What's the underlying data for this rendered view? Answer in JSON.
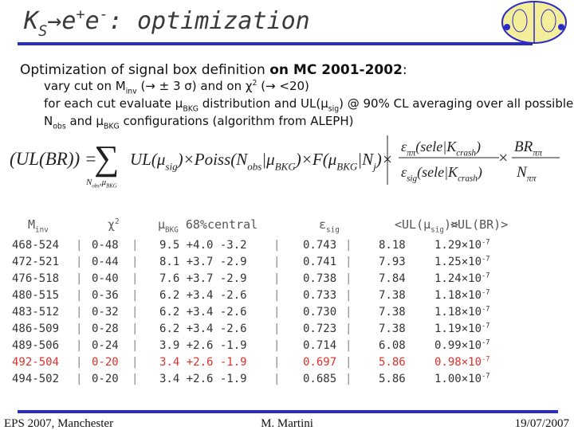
{
  "title": [
    {
      "t": "K"
    },
    {
      "sub": "S"
    },
    {
      "t": "→e"
    },
    {
      "sup": "+"
    },
    {
      "t": "e"
    },
    {
      "sup": "-"
    },
    {
      "t": ": optimization"
    }
  ],
  "heading": [
    {
      "t": "Optimization of signal box definition "
    },
    {
      "b": "on MC 2001-2002"
    },
    {
      "t": ":"
    }
  ],
  "bullets": [
    [
      {
        "t": "vary cut on M"
      },
      {
        "sub": "inv"
      },
      {
        "t": " (→ ± 3 σ) and on χ"
      },
      {
        "sup": "2"
      },
      {
        "t": " (→ <20)"
      }
    ],
    [
      {
        "t": "for each cut evaluate μ"
      },
      {
        "sub": "BKG"
      },
      {
        "t": " distribution and UL(μ"
      },
      {
        "sub": "sig"
      },
      {
        "t": ") @ 90% CL averaging over all possible"
      }
    ],
    [
      {
        "t": "N"
      },
      {
        "sub": "obs"
      },
      {
        "t": " and μ"
      },
      {
        "sub": "BKG"
      },
      {
        "t": " configurations (algorithm from ALEPH)"
      }
    ]
  ],
  "formula": {
    "lhs": [
      {
        "t": "(UL(BR))"
      }
    ],
    "eq": [
      {
        "t": "="
      }
    ],
    "sum": [
      {
        "t": "∑"
      }
    ],
    "sum_under": [
      {
        "t": "N"
      },
      {
        "sub": "obs"
      },
      {
        "t": ",μ"
      },
      {
        "sub": "BKG"
      }
    ],
    "body": [
      {
        "t": "UL(μ"
      },
      {
        "sub": "sig"
      },
      {
        "t": ")×Poiss(N"
      },
      {
        "sub": "obs"
      },
      {
        "t": "|μ"
      },
      {
        "sub": "BKG"
      },
      {
        "t": ")×F(μ"
      },
      {
        "sub": "BKG"
      },
      {
        "t": "|N"
      },
      {
        "sub": "j"
      },
      {
        "t": ")×"
      }
    ],
    "eff_num": [
      {
        "t": "ε"
      },
      {
        "sub": "ππ"
      },
      {
        "t": "(sele|K"
      },
      {
        "sub": "crash"
      },
      {
        "t": ")"
      }
    ],
    "eff_den": [
      {
        "t": "ε"
      },
      {
        "sub": "sig"
      },
      {
        "t": "(sele|K"
      },
      {
        "sub": "crash"
      },
      {
        "t": ")"
      }
    ],
    "times": [
      {
        "t": "×"
      }
    ],
    "br_num": [
      {
        "t": "BR"
      },
      {
        "sub": "ππ"
      }
    ],
    "br_den": [
      {
        "t": "N"
      },
      {
        "sub": "ππ"
      }
    ]
  },
  "table": {
    "header": [
      [
        {
          "t": "M"
        },
        {
          "sub": "inv"
        }
      ],
      [
        {
          "t": "χ"
        },
        {
          "sup": "2"
        }
      ],
      [
        {
          "t": "μ"
        },
        {
          "sub": "BKG"
        },
        {
          "t": " 68%central"
        }
      ],
      [
        {
          "t": "ε"
        },
        {
          "sub": "sig"
        }
      ],
      [
        {
          "t": "<UL(μ"
        },
        {
          "sub": "sig"
        },
        {
          "t": ")>"
        }
      ],
      [
        {
          "t": "<UL(BR)>"
        }
      ]
    ],
    "highlight_row": 7,
    "rows": [
      [
        "468-524",
        "0-48",
        "9.5 +4.0 -3.2",
        "0.743",
        "8.18",
        [
          {
            "t": "1.29×10"
          },
          {
            "sup": "-7"
          }
        ]
      ],
      [
        "472-521",
        "0-44",
        "8.1 +3.7 -2.9",
        "0.741",
        "7.93",
        [
          {
            "t": "1.25×10"
          },
          {
            "sup": "-7"
          }
        ]
      ],
      [
        "476-518",
        "0-40",
        "7.6 +3.7 -2.9",
        "0.738",
        "7.84",
        [
          {
            "t": "1.24×10"
          },
          {
            "sup": "-7"
          }
        ]
      ],
      [
        "480-515",
        "0-36",
        "6.2 +3.4 -2.6",
        "0.733",
        "7.38",
        [
          {
            "t": "1.18×10"
          },
          {
            "sup": "-7"
          }
        ]
      ],
      [
        "483-512",
        "0-32",
        "6.2 +3.4 -2.6",
        "0.730",
        "7.38",
        [
          {
            "t": "1.18×10"
          },
          {
            "sup": "-7"
          }
        ]
      ],
      [
        "486-509",
        "0-28",
        "6.2 +3.4 -2.6",
        "0.723",
        "7.38",
        [
          {
            "t": "1.19×10"
          },
          {
            "sup": "-7"
          }
        ]
      ],
      [
        "489-506",
        "0-24",
        "3.9 +2.6 -1.9",
        "0.714",
        "6.08",
        [
          {
            "t": "0.99×10"
          },
          {
            "sup": "-7"
          }
        ]
      ],
      [
        "492-504",
        "0-20",
        "3.4 +2.6 -1.9",
        "0.697",
        "5.86",
        [
          {
            "t": "0.98×10"
          },
          {
            "sup": "-7"
          }
        ]
      ],
      [
        "494-502",
        "0-20",
        "3.4 +2.6 -1.9",
        "0.685",
        "5.86",
        [
          {
            "t": "1.00×10"
          },
          {
            "sup": "-7"
          }
        ]
      ]
    ]
  },
  "footer": {
    "left": "EPS 2007, Manchester",
    "center": "M. Martini",
    "right": "19/07/2007"
  }
}
